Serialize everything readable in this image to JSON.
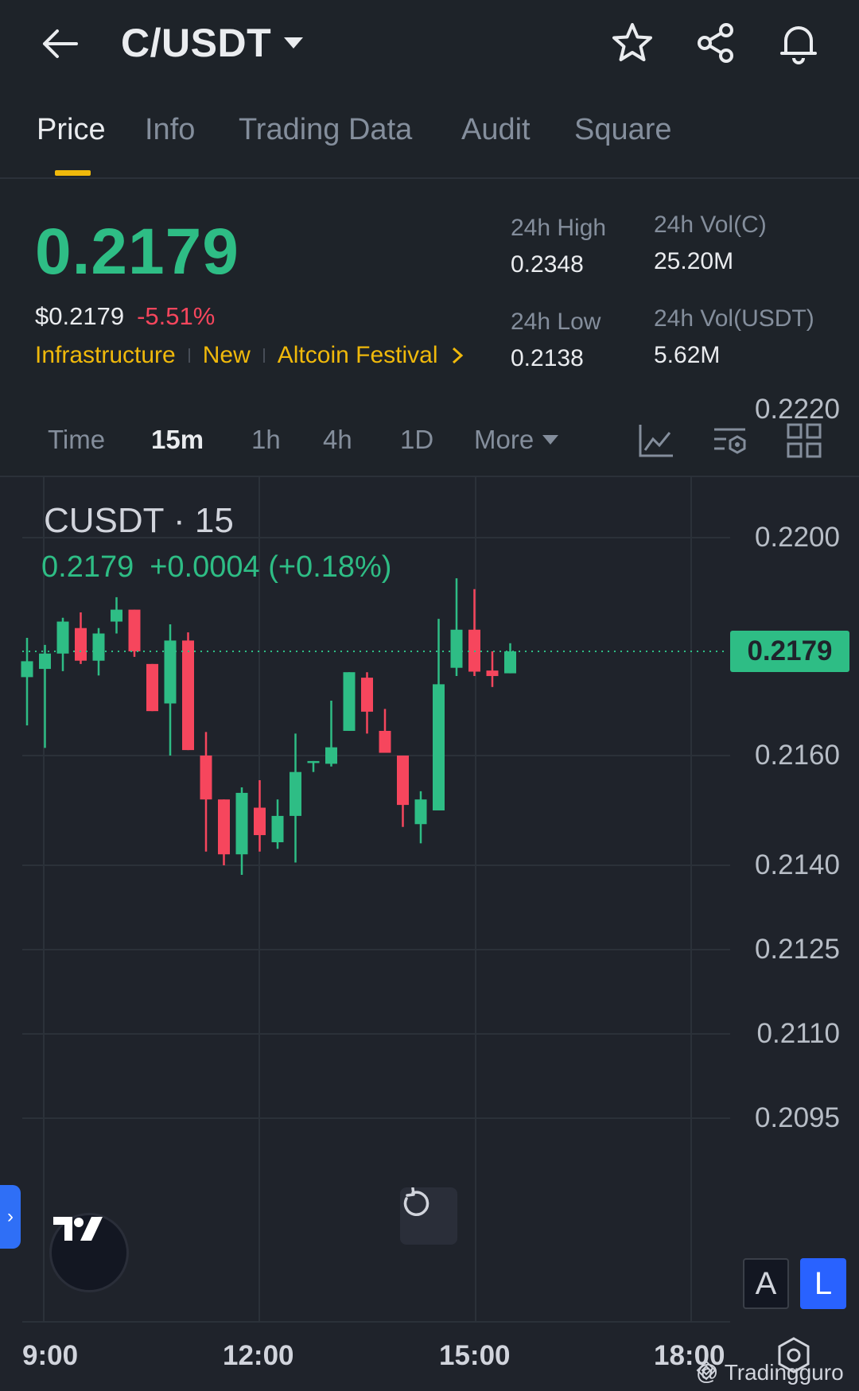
{
  "header": {
    "pair": "C/USDT"
  },
  "tabs": [
    {
      "label": "Price",
      "active": true
    },
    {
      "label": "Info",
      "active": false
    },
    {
      "label": "Trading Data",
      "active": false
    },
    {
      "label": "Audit",
      "active": false
    },
    {
      "label": "Square",
      "active": false
    }
  ],
  "price": {
    "last": "0.2179",
    "usd": "$0.2179",
    "change": "-5.51%",
    "tags": [
      "Infrastructure",
      "New",
      "Altcoin Festival"
    ]
  },
  "stats": {
    "high_label": "24h High",
    "high": "0.2348",
    "low_label": "24h Low",
    "low": "0.2138",
    "volc_label": "24h Vol(C)",
    "volc": "25.20M",
    "volu_label": "24h Vol(USDT)",
    "volu": "5.62M"
  },
  "intervals": [
    {
      "label": "Time",
      "active": false
    },
    {
      "label": "15m",
      "active": true
    },
    {
      "label": "1h",
      "active": false
    },
    {
      "label": "4h",
      "active": false
    },
    {
      "label": "1D",
      "active": false
    },
    {
      "label": "More",
      "active": false
    }
  ],
  "chart": {
    "legend_name": "CUSDT · 15",
    "legend_last": "0.2179",
    "legend_change": "+0.0004 (+0.18%)",
    "last_badge": "0.2179",
    "a_label": "A",
    "l_label": "L",
    "watermark": "@ Tradingguro",
    "colors": {
      "up": "#2ebd85",
      "down": "#f6465d",
      "accent": "#f0b90b",
      "blue": "#2962ff"
    }
  },
  "chart_data": {
    "type": "candlestick",
    "y_tick_labels": [
      "0.2220",
      "0.2200",
      "0.2179",
      "0.2160",
      "0.2140",
      "0.2125",
      "0.2110",
      "0.2095"
    ],
    "x_tick_labels": [
      "9:00",
      "12:00",
      "15:00",
      "18:00"
    ],
    "last_price": 0.2179,
    "candles": [
      {
        "o": 0.21743,
        "h": 0.21815,
        "l": 0.21655,
        "c": 0.21772
      },
      {
        "o": 0.21758,
        "h": 0.21802,
        "l": 0.21614,
        "c": 0.21786
      },
      {
        "o": 0.21786,
        "h": 0.21852,
        "l": 0.21754,
        "c": 0.21845
      },
      {
        "o": 0.21833,
        "h": 0.21862,
        "l": 0.21767,
        "c": 0.21773
      },
      {
        "o": 0.21773,
        "h": 0.21833,
        "l": 0.21746,
        "c": 0.21823
      },
      {
        "o": 0.21845,
        "h": 0.2189,
        "l": 0.21823,
        "c": 0.21867
      },
      {
        "o": 0.21867,
        "h": 0.21867,
        "l": 0.2178,
        "c": 0.2179
      },
      {
        "o": 0.21767,
        "h": 0.21767,
        "l": 0.21681,
        "c": 0.21681
      },
      {
        "o": 0.21695,
        "h": 0.2184,
        "l": 0.216,
        "c": 0.2181
      },
      {
        "o": 0.2181,
        "h": 0.21825,
        "l": 0.2161,
        "c": 0.2161
      },
      {
        "o": 0.216,
        "h": 0.21643,
        "l": 0.21425,
        "c": 0.2152
      },
      {
        "o": 0.2152,
        "h": 0.2152,
        "l": 0.214,
        "c": 0.2142
      },
      {
        "o": 0.2142,
        "h": 0.21542,
        "l": 0.21383,
        "c": 0.21532
      },
      {
        "o": 0.21505,
        "h": 0.21555,
        "l": 0.21425,
        "c": 0.21455
      },
      {
        "o": 0.21442,
        "h": 0.2152,
        "l": 0.2143,
        "c": 0.2149
      },
      {
        "o": 0.2149,
        "h": 0.2164,
        "l": 0.21405,
        "c": 0.2157
      },
      {
        "o": 0.2159,
        "h": 0.2159,
        "l": 0.2157,
        "c": 0.2159
      },
      {
        "o": 0.21585,
        "h": 0.217,
        "l": 0.2158,
        "c": 0.21615
      },
      {
        "o": 0.21645,
        "h": 0.21752,
        "l": 0.21645,
        "c": 0.21752
      },
      {
        "o": 0.21742,
        "h": 0.21752,
        "l": 0.2164,
        "c": 0.2168
      },
      {
        "o": 0.21645,
        "h": 0.21685,
        "l": 0.2161,
        "c": 0.21605
      },
      {
        "o": 0.216,
        "h": 0.216,
        "l": 0.2147,
        "c": 0.2151
      },
      {
        "o": 0.21475,
        "h": 0.21535,
        "l": 0.2144,
        "c": 0.2152
      },
      {
        "o": 0.215,
        "h": 0.2185,
        "l": 0.215,
        "c": 0.2173
      },
      {
        "o": 0.2176,
        "h": 0.21925,
        "l": 0.21745,
        "c": 0.2183
      },
      {
        "o": 0.2183,
        "h": 0.21905,
        "l": 0.21745,
        "c": 0.21753
      },
      {
        "o": 0.21755,
        "h": 0.2179,
        "l": 0.21725,
        "c": 0.21745
      },
      {
        "o": 0.2175,
        "h": 0.21805,
        "l": 0.2175,
        "c": 0.2179
      }
    ]
  }
}
